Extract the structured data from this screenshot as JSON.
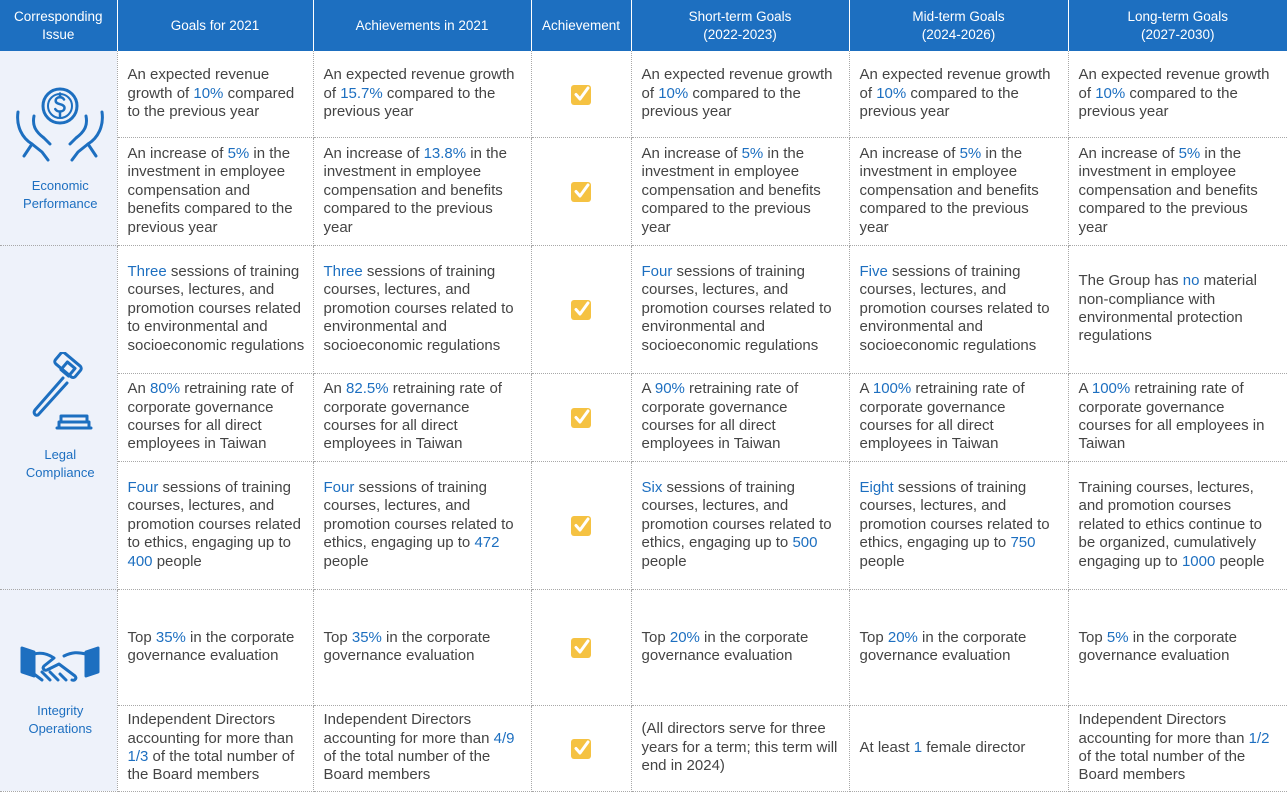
{
  "headers": {
    "issue": [
      "Corresponding",
      "Issue"
    ],
    "goals_2021": "Goals for 2021",
    "achievements_2021": "Achievements in 2021",
    "achievement": "Achievement",
    "short_term": [
      "Short-term Goals",
      "(2022-2023)"
    ],
    "mid_term": [
      "Mid-term Goals",
      "(2024-2026)"
    ],
    "long_term": [
      "Long-term Goals",
      "(2027-2030)"
    ]
  },
  "colors": {
    "header_bg": "#1d6fc0",
    "highlight": "#1d6fc0",
    "issue_bg": "#eef2fa",
    "check": "#f5c242"
  },
  "issues": [
    {
      "name": "Economic Performance",
      "icon": "money-hands-icon"
    },
    {
      "name": "Legal Compliance",
      "icon": "gavel-icon"
    },
    {
      "name": "Integrity Operations",
      "icon": "handshake-icon"
    }
  ],
  "rows": [
    {
      "goal2021": [
        "An expected revenue growth of ",
        "10%",
        " compared to the previous year"
      ],
      "ach2021": [
        "An expected revenue growth of ",
        "15.7%",
        " compared to the previous year"
      ],
      "achieved": true,
      "short": [
        "An expected revenue growth of ",
        "10%",
        " compared to the previous year"
      ],
      "mid": [
        "An expected revenue growth of ",
        "10%",
        " compared to the previous year"
      ],
      "long": [
        "An expected revenue growth of ",
        "10%",
        " compared to the previous year"
      ]
    },
    {
      "goal2021": [
        "An increase of ",
        "5%",
        " in the investment in employee compensation and benefits compared to the previous year"
      ],
      "ach2021": [
        "An increase of ",
        "13.8%",
        " in the investment in employee compensation and benefits compared to the previous year"
      ],
      "achieved": true,
      "short": [
        "An increase of ",
        "5%",
        " in the investment in employee compensation and benefits compared to the previous year"
      ],
      "mid": [
        "An increase of ",
        "5%",
        " in the investment in employee compensation and benefits compared to the previous year"
      ],
      "long": [
        "An increase of ",
        "5%",
        " in the investment in employee compensation and benefits compared to the previous year"
      ]
    },
    {
      "goal2021": [
        "",
        "Three",
        " sessions of training courses, lectures, and promotion courses related to environmental and socioeconomic regulations"
      ],
      "ach2021": [
        "",
        "Three",
        " sessions of training courses, lectures, and promotion courses related to environmental and socioeconomic regulations"
      ],
      "achieved": true,
      "short": [
        "",
        "Four",
        " sessions of training courses, lectures, and promotion courses related to environmental and socioeconomic regulations"
      ],
      "mid": [
        "",
        "Five",
        " sessions of training courses, lectures, and promotion courses related to environmental and socioeconomic regulations"
      ],
      "long": [
        "The Group has ",
        "no",
        " material non-compliance with environmental protection regulations"
      ]
    },
    {
      "goal2021": [
        "An ",
        "80%",
        " retraining rate of corporate governance courses for all direct employees in Taiwan"
      ],
      "ach2021": [
        "An ",
        "82.5%",
        " retraining rate of corporate governance courses for all direct employees in Taiwan"
      ],
      "achieved": true,
      "short": [
        "A ",
        "90%",
        " retraining rate of corporate governance courses for all direct employees in Taiwan"
      ],
      "mid": [
        "A ",
        "100%",
        " retraining rate of corporate governance courses for all direct employees in Taiwan"
      ],
      "long": [
        "A ",
        "100%",
        " retraining rate of corporate governance courses for all employees in Taiwan"
      ]
    },
    {
      "goal2021": [
        "",
        "Four",
        " sessions of training courses, lectures, and promotion courses related to ethics, engaging up to ",
        "400",
        " people"
      ],
      "ach2021": [
        "",
        "Four",
        " sessions of training courses, lectures, and promotion courses related to ethics, engaging up to ",
        "472",
        " people"
      ],
      "achieved": true,
      "short": [
        "",
        "Six",
        " sessions of training courses, lectures, and promotion courses related to ethics, engaging up to ",
        "500",
        " people"
      ],
      "mid": [
        "",
        "Eight",
        " sessions of training courses, lectures, and promotion courses related to ethics, engaging up to ",
        "750",
        " people"
      ],
      "long": [
        "Training courses, lectures, and promotion courses related to ethics continue to be organized, cumulatively engaging up to ",
        "1000",
        " people"
      ]
    },
    {
      "goal2021": [
        "Top ",
        "35%",
        " in the corporate governance evaluation"
      ],
      "ach2021": [
        "Top ",
        "35%",
        " in the corporate governance evaluation"
      ],
      "achieved": true,
      "short": [
        "Top ",
        "20%",
        " in the corporate governance evaluation"
      ],
      "mid": [
        "Top ",
        "20%",
        " in the corporate governance evaluation"
      ],
      "long": [
        "Top ",
        "5%",
        " in the corporate governance evaluation"
      ]
    },
    {
      "goal2021": [
        "Independent Directors accounting for more than ",
        "1/3",
        " of the total number of the Board members"
      ],
      "ach2021": [
        "Independent Directors accounting for more than ",
        "4/9",
        " of the total number of the Board members"
      ],
      "achieved": true,
      "short": [
        "(All directors serve for three years for a term; this term will end in 2024)"
      ],
      "mid": [
        "At least ",
        "1",
        " female director"
      ],
      "long": [
        "Independent Directors accounting for more than ",
        "1/2",
        " of the total number of the Board members"
      ]
    }
  ]
}
